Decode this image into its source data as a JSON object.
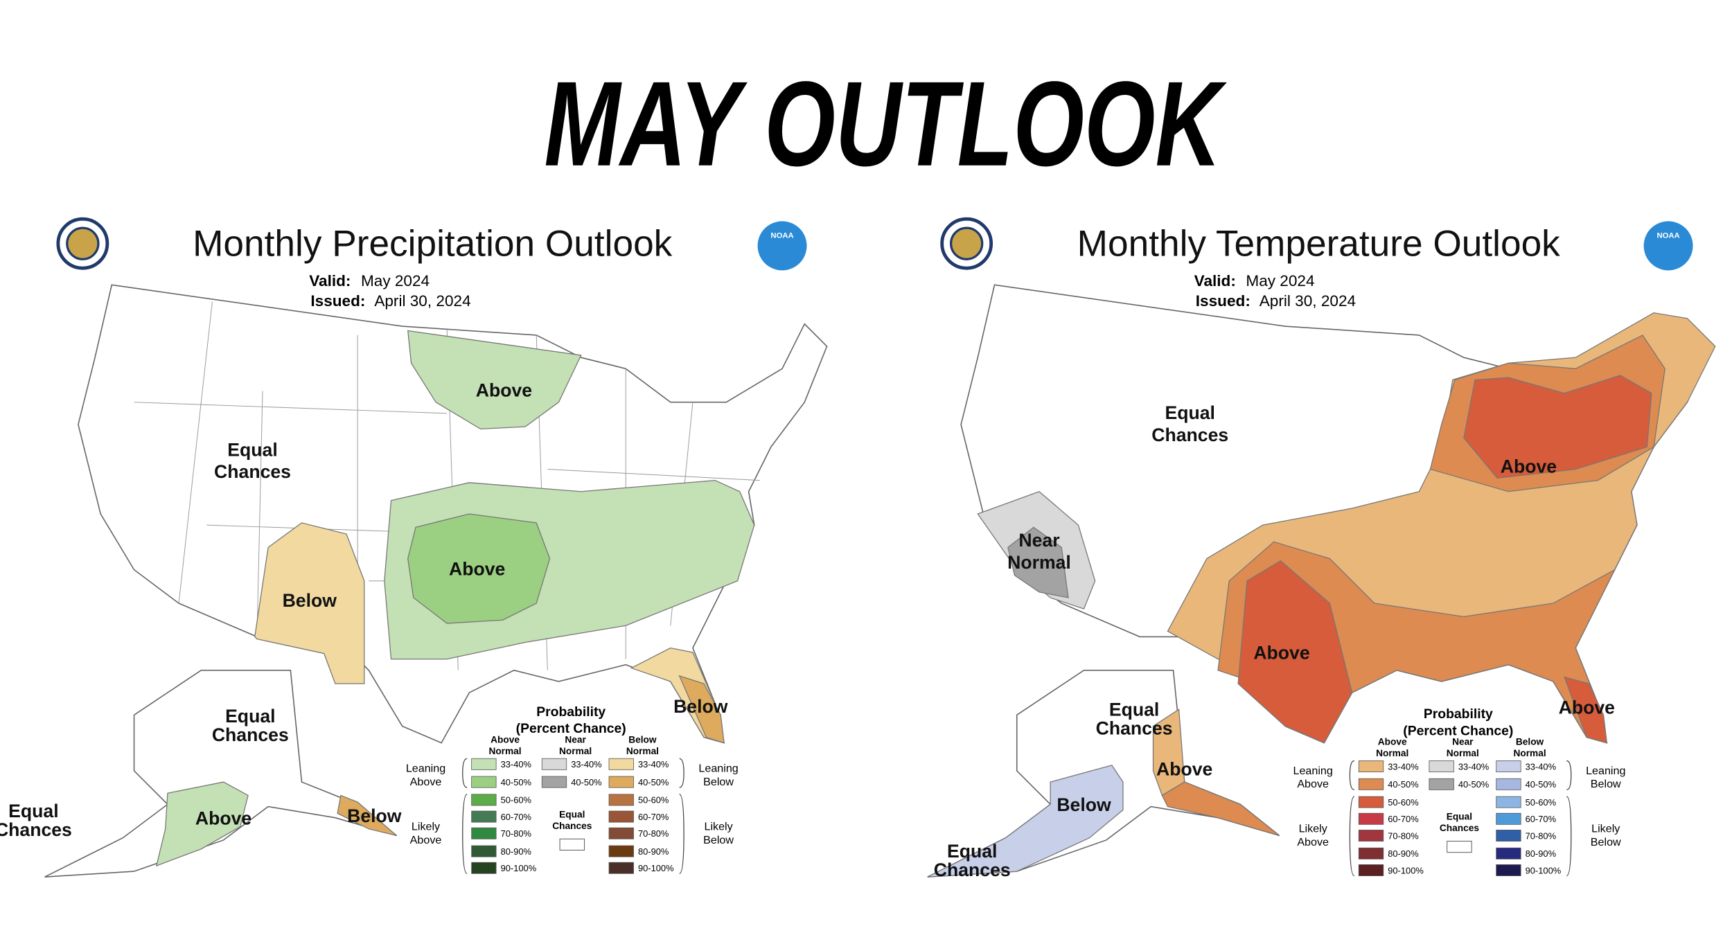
{
  "title": "MAY OUTLOOK",
  "maps": [
    {
      "title": "Monthly Precipitation Outlook",
      "agency": "NOAA",
      "valid_label": "Valid:",
      "valid": "May 2024",
      "issued_label": "Issued:",
      "issued": "April 30, 2024",
      "regions": [
        "Above",
        "Equal Chances",
        "Above",
        "Below",
        "Below",
        "Equal Chances",
        "Above",
        "Below",
        "Equal Chances"
      ],
      "legend": {
        "title": "Probability",
        "subtitle": "(Percent Chance)",
        "leaning_above": "Leaning Above",
        "likely_above": "Likely Above",
        "leaning_below": "Leaning Below",
        "likely_below": "Likely Below",
        "equal_chances": "Equal Chances",
        "columns": [
          {
            "name": "Above Normal",
            "bins": [
              {
                "label": "33-40%",
                "color": "#c4e0b5"
              },
              {
                "label": "40-50%",
                "color": "#9bcf82"
              },
              {
                "label": "50-60%",
                "color": "#5cac49"
              },
              {
                "label": "60-70%",
                "color": "#437b54"
              },
              {
                "label": "70-80%",
                "color": "#2f8a40"
              },
              {
                "label": "80-90%",
                "color": "#2f5a33"
              },
              {
                "label": "90-100%",
                "color": "#24431f"
              }
            ]
          },
          {
            "name": "Near Normal",
            "bins": [
              {
                "label": "33-40%",
                "color": "#d9d9d9"
              },
              {
                "label": "40-50%",
                "color": "#a3a3a3"
              }
            ]
          },
          {
            "name": "Below Normal",
            "bins": [
              {
                "label": "33-40%",
                "color": "#f1d9a0"
              },
              {
                "label": "40-50%",
                "color": "#ddaa5e"
              },
              {
                "label": "50-60%",
                "color": "#b87440"
              },
              {
                "label": "60-70%",
                "color": "#9a5436"
              },
              {
                "label": "70-80%",
                "color": "#834a35"
              },
              {
                "label": "80-90%",
                "color": "#6b3b10"
              },
              {
                "label": "90-100%",
                "color": "#4a2f29"
              }
            ]
          }
        ]
      }
    },
    {
      "title": "Monthly Temperature Outlook",
      "agency": "NOAA",
      "valid_label": "Valid:",
      "valid": "May 2024",
      "issued_label": "Issued:",
      "issued": "April 30, 2024",
      "regions": [
        "Equal Chances",
        "Near Normal",
        "Above",
        "Above",
        "Above",
        "Equal Chances",
        "Above",
        "Below",
        "Equal Chances"
      ],
      "legend": {
        "title": "Probability",
        "subtitle": "(Percent Chance)",
        "leaning_above": "Leaning Above",
        "likely_above": "Likely Above",
        "leaning_below": "Leaning Below",
        "likely_below": "Likely Below",
        "equal_chances": "Equal Chances",
        "columns": [
          {
            "name": "Above Normal",
            "bins": [
              {
                "label": "33-40%",
                "color": "#e9b77a"
              },
              {
                "label": "40-50%",
                "color": "#dd8b50"
              },
              {
                "label": "50-60%",
                "color": "#d65c3c"
              },
              {
                "label": "60-70%",
                "color": "#c73b47"
              },
              {
                "label": "70-80%",
                "color": "#a1363f"
              },
              {
                "label": "80-90%",
                "color": "#7f2f31"
              },
              {
                "label": "90-100%",
                "color": "#5c1f22"
              }
            ]
          },
          {
            "name": "Near Normal",
            "bins": [
              {
                "label": "33-40%",
                "color": "#d9d9d9"
              },
              {
                "label": "40-50%",
                "color": "#a3a3a3"
              }
            ]
          },
          {
            "name": "Below Normal",
            "bins": [
              {
                "label": "33-40%",
                "color": "#c7d0e8"
              },
              {
                "label": "40-50%",
                "color": "#a6b8df"
              },
              {
                "label": "50-60%",
                "color": "#8db5e3"
              },
              {
                "label": "60-70%",
                "color": "#4f9bd9"
              },
              {
                "label": "70-80%",
                "color": "#2f5fa6"
              },
              {
                "label": "80-90%",
                "color": "#262b80"
              },
              {
                "label": "90-100%",
                "color": "#1c1a50"
              }
            ]
          }
        ]
      }
    }
  ]
}
